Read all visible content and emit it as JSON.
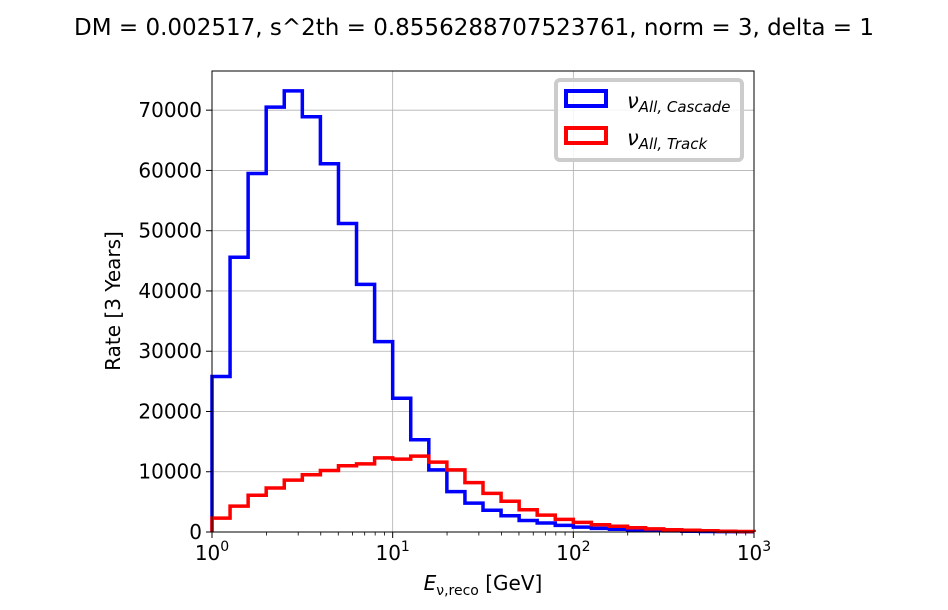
{
  "chart_data": {
    "type": "step-histogram",
    "title": "DM = 0.002517, s^2th = 0.8556288707523761, norm = 3, delta = 1",
    "xlabel": {
      "main": "E",
      "sub": "ν,reco",
      "unit": " [GeV]"
    },
    "ylabel": "Rate [3 Years]",
    "xscale": "log",
    "xlim": [
      1,
      1000
    ],
    "ylim": [
      0,
      76500
    ],
    "grid": true,
    "legend_position": "top-right",
    "x_ticks": [
      {
        "value": 1,
        "base": "10",
        "exp": "0"
      },
      {
        "value": 10,
        "base": "10",
        "exp": "1"
      },
      {
        "value": 100,
        "base": "10",
        "exp": "2"
      },
      {
        "value": 1000,
        "base": "10",
        "exp": "3"
      }
    ],
    "y_ticks": [
      {
        "value": 0,
        "label": "0"
      },
      {
        "value": 10000,
        "label": "10000"
      },
      {
        "value": 20000,
        "label": "20000"
      },
      {
        "value": 30000,
        "label": "30000"
      },
      {
        "value": 40000,
        "label": "40000"
      },
      {
        "value": 50000,
        "label": "50000"
      },
      {
        "value": 60000,
        "label": "60000"
      },
      {
        "value": 70000,
        "label": "70000"
      }
    ],
    "bin_edges": [
      1.0,
      1.2589,
      1.5849,
      1.9953,
      2.5119,
      3.1623,
      3.9811,
      5.0119,
      6.3096,
      7.9433,
      10.0,
      12.589,
      15.849,
      19.953,
      25.119,
      31.623,
      39.811,
      50.119,
      63.096,
      79.433,
      100.0,
      125.89,
      158.49,
      199.53,
      251.19,
      316.23,
      398.11,
      501.19,
      630.96,
      794.33,
      1000.0
    ],
    "series": [
      {
        "name": "ν",
        "name_sub": "All, Cascade",
        "color": "#0000ff",
        "values": [
          25800,
          45600,
          59500,
          70500,
          73200,
          68900,
          61100,
          51200,
          41100,
          31600,
          22200,
          15300,
          10300,
          6700,
          4800,
          3600,
          2700,
          1900,
          1500,
          1100,
          800,
          600,
          450,
          330,
          250,
          180,
          130,
          90,
          60,
          40
        ]
      },
      {
        "name": "ν",
        "name_sub": "All, Track",
        "color": "#ff0000",
        "values": [
          2300,
          4300,
          6100,
          7300,
          8600,
          9500,
          10200,
          11000,
          11300,
          12300,
          12100,
          12600,
          11600,
          10300,
          8200,
          6400,
          5100,
          3700,
          2800,
          2100,
          1600,
          1200,
          950,
          700,
          520,
          380,
          280,
          200,
          130,
          80
        ]
      }
    ]
  }
}
